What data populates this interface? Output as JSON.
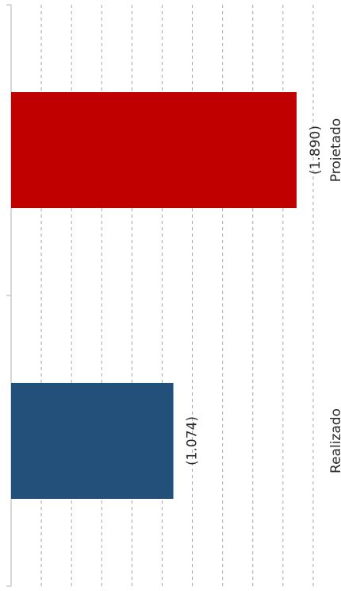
{
  "chart_data": {
    "type": "bar",
    "orientation": "horizontal",
    "categories": [
      "Realizado",
      "Projetado"
    ],
    "values": [
      -1074,
      -1890
    ],
    "data_labels": [
      "(1.074)",
      "(1.890)"
    ],
    "colors": [
      "#234f7b",
      "#c00000"
    ],
    "title": "",
    "xlabel": "",
    "ylabel": "",
    "xlim": [
      0,
      -2000
    ],
    "grid": true,
    "gridline_style": "dashed",
    "legend": "none"
  }
}
